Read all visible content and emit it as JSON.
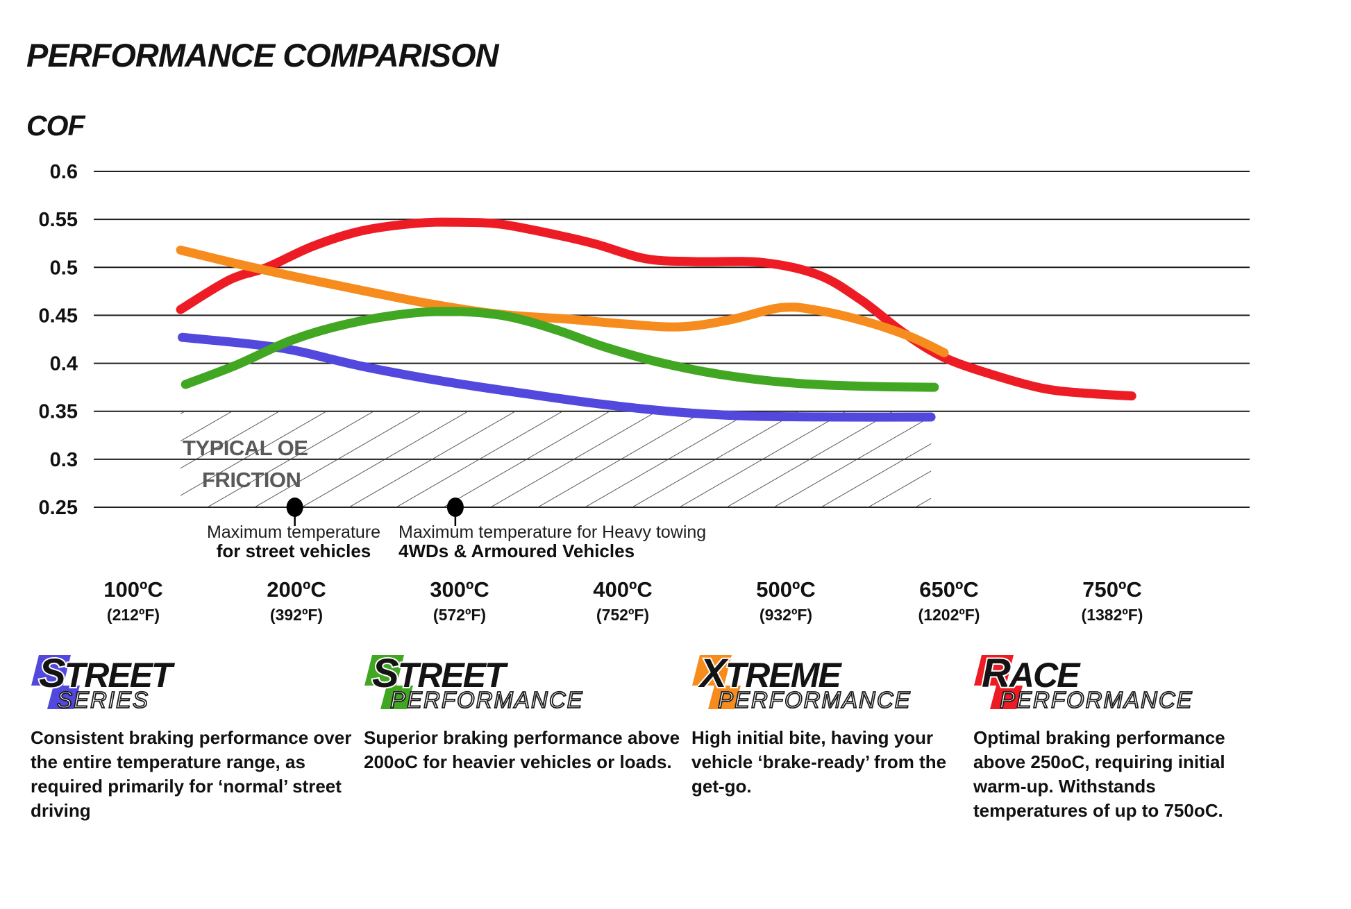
{
  "chart_data": {
    "type": "line",
    "title": "PERFORMANCE COMPARISON",
    "ylabel": "COF",
    "ylim": [
      0.25,
      0.6
    ],
    "grid": "horizontal",
    "legend_position": "none",
    "y_ticks": [
      "0.6",
      "0.55",
      "0.5",
      "0.45",
      "0.4",
      "0.35",
      "0.3",
      "0.25"
    ],
    "y_tick_values": [
      0.6,
      0.55,
      0.5,
      0.45,
      0.4,
      0.35,
      0.3,
      0.25
    ],
    "x_ticks": [
      {
        "label_c": "100ºC",
        "label_f": "(212ºF)"
      },
      {
        "label_c": "200ºC",
        "label_f": "(392ºF)"
      },
      {
        "label_c": "300ºC",
        "label_f": "(572ºF)"
      },
      {
        "label_c": "400ºC",
        "label_f": "(752ºF)"
      },
      {
        "label_c": "500ºC",
        "label_f": "(932ºF)"
      },
      {
        "label_c": "650ºC",
        "label_f": "(1202ºF)"
      },
      {
        "label_c": "750ºC",
        "label_f": "(1382ºF)"
      }
    ],
    "x_units_note": "series points are [tick_index, COF]; tick_index 0 = 100ºC tick, 1 = 200ºC, 2 = 300ºC, 3 = 400ºC, 4 = 500ºC, 5 = 650ºC, 6 = 750ºC",
    "series": [
      {
        "name": "Race Performance",
        "color": "#ed1c24",
        "points": [
          [
            0.29,
            0.456
          ],
          [
            0.59,
            0.487
          ],
          [
            0.82,
            0.5
          ],
          [
            1.1,
            0.522
          ],
          [
            1.4,
            0.538
          ],
          [
            1.74,
            0.546
          ],
          [
            1.99,
            0.547
          ],
          [
            2.25,
            0.545
          ],
          [
            2.59,
            0.534
          ],
          [
            2.84,
            0.524
          ],
          [
            3.14,
            0.509
          ],
          [
            3.44,
            0.506
          ],
          [
            3.86,
            0.505
          ],
          [
            4.2,
            0.492
          ],
          [
            4.46,
            0.466
          ],
          [
            4.72,
            0.432
          ],
          [
            4.97,
            0.406
          ],
          [
            5.27,
            0.388
          ],
          [
            5.57,
            0.374
          ],
          [
            5.82,
            0.369
          ],
          [
            6.12,
            0.366
          ]
        ]
      },
      {
        "name": "Xtreme Performance",
        "color": "#f78c1e",
        "points": [
          [
            0.29,
            0.518
          ],
          [
            0.63,
            0.504
          ],
          [
            1.0,
            0.49
          ],
          [
            1.4,
            0.476
          ],
          [
            1.82,
            0.462
          ],
          [
            2.25,
            0.451
          ],
          [
            2.67,
            0.446
          ],
          [
            3.01,
            0.441
          ],
          [
            3.35,
            0.438
          ],
          [
            3.65,
            0.445
          ],
          [
            3.97,
            0.458
          ],
          [
            4.2,
            0.455
          ],
          [
            4.5,
            0.443
          ],
          [
            4.76,
            0.428
          ],
          [
            4.97,
            0.411
          ]
        ]
      },
      {
        "name": "Street Series",
        "color": "#5348dd",
        "points": [
          [
            0.3,
            0.427
          ],
          [
            0.72,
            0.42
          ],
          [
            1.0,
            0.413
          ],
          [
            1.4,
            0.397
          ],
          [
            1.91,
            0.381
          ],
          [
            2.42,
            0.368
          ],
          [
            2.89,
            0.357
          ],
          [
            3.35,
            0.349
          ],
          [
            3.78,
            0.345
          ],
          [
            4.3,
            0.344
          ],
          [
            4.89,
            0.344
          ]
        ]
      },
      {
        "name": "Street Performance",
        "color": "#41a621",
        "points": [
          [
            0.32,
            0.378
          ],
          [
            0.63,
            0.398
          ],
          [
            0.97,
            0.424
          ],
          [
            1.31,
            0.441
          ],
          [
            1.69,
            0.452
          ],
          [
            1.99,
            0.454
          ],
          [
            2.29,
            0.449
          ],
          [
            2.59,
            0.435
          ],
          [
            2.89,
            0.417
          ],
          [
            3.25,
            0.4
          ],
          [
            3.65,
            0.387
          ],
          [
            4.08,
            0.379
          ],
          [
            4.5,
            0.376
          ],
          [
            4.91,
            0.375
          ]
        ]
      }
    ],
    "oe_band": {
      "label_line1": "TYPICAL OE",
      "label_line2": "FRICTION",
      "cof_from": 0.25,
      "cof_to": 0.35,
      "hatch": true
    },
    "annotations": [
      {
        "line1": "Maximum temperature",
        "line2": "for street vehicles",
        "at_tick": "200ºC",
        "cof": 0.25
      },
      {
        "line1": "Maximum temperature for Heavy towing",
        "line2": "4WDs & Armoured Vehicles",
        "at_tick": "300ºC",
        "cof": 0.25
      }
    ]
  },
  "products": [
    {
      "brand_initial": "S",
      "brand_rest": "TREET",
      "series_word": "SERIES",
      "color": "#5348dd",
      "description": "Consistent braking performance over the entire temperature range, as required primarily for ‘normal’ street driving"
    },
    {
      "brand_initial": "S",
      "brand_rest": "TREET",
      "series_word": "PERFORMANCE",
      "color": "#41a621",
      "description": "Superior braking performance above 200oC for heavier vehicles or loads."
    },
    {
      "brand_initial": "X",
      "brand_rest": "TREME",
      "series_word": "PERFORMANCE",
      "color": "#f78c1e",
      "description": "High initial bite, having your vehicle ‘brake-ready’ from the get-go."
    },
    {
      "brand_initial": "R",
      "brand_rest": "ACE",
      "series_word": "PERFORMANCE",
      "color": "#ed1c24",
      "description": "Optimal braking performance above 250oC, requiring initial warm-up. Withstands temperatures of up to 750oC."
    }
  ]
}
